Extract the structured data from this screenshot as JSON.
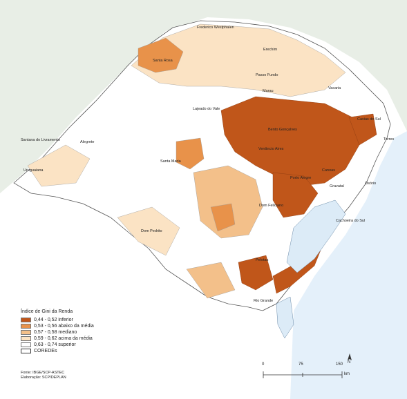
{
  "legend": {
    "title": "Índice de Gini da Renda",
    "items": [
      {
        "label": "0,44 - 0,52  inferior",
        "color": "#c0561a"
      },
      {
        "label": "0,53 - 0,56  abaixo da média",
        "color": "#e8924a"
      },
      {
        "label": "0,57 - 0,58  mediano",
        "color": "#f3c08a"
      },
      {
        "label": "0,59 - 0,62  acima da média",
        "color": "#fbe3c4"
      },
      {
        "label": "0,63 - 0,74  superior",
        "color": "#ffffff"
      },
      {
        "label": "COREDEs",
        "color": "#ffffff"
      }
    ]
  },
  "source": {
    "line1": "Fonte: IBGE/SCP-ASTEC",
    "line2": "Elaboração: SCP/DEPLAN"
  },
  "scale": {
    "t0": "0",
    "t1": "75",
    "t2": "150",
    "unit": "km"
  },
  "north_label": "N",
  "cities": [
    {
      "name": "Erechim"
    },
    {
      "name": "Passo Fundo"
    },
    {
      "name": "Frederico Westphalen"
    },
    {
      "name": "Santa Rosa"
    },
    {
      "name": "Marau"
    },
    {
      "name": "Vacaria"
    },
    {
      "name": "Lajeado do Vale"
    },
    {
      "name": "Bento Gonçalves"
    },
    {
      "name": "Caxias do Sul"
    },
    {
      "name": "Torres"
    },
    {
      "name": "Osório"
    },
    {
      "name": "Santa Maria"
    },
    {
      "name": "Venâncio Aires"
    },
    {
      "name": "Uruguaiana"
    },
    {
      "name": "Canoas"
    },
    {
      "name": "Pelotas"
    },
    {
      "name": "Rio Grande"
    },
    {
      "name": "Dom Pedrito"
    },
    {
      "name": "Gravataí"
    },
    {
      "name": "Alegrete"
    },
    {
      "name": "Porto Alegre"
    },
    {
      "name": "Cachoeira do Sul"
    },
    {
      "name": "Dom Feliciano"
    },
    {
      "name": "Santana do Livramento"
    }
  ],
  "colors": {
    "land_bg": "#e8eee6",
    "ocean": "#e4f0fa",
    "lagoon": "#dcebf7"
  }
}
